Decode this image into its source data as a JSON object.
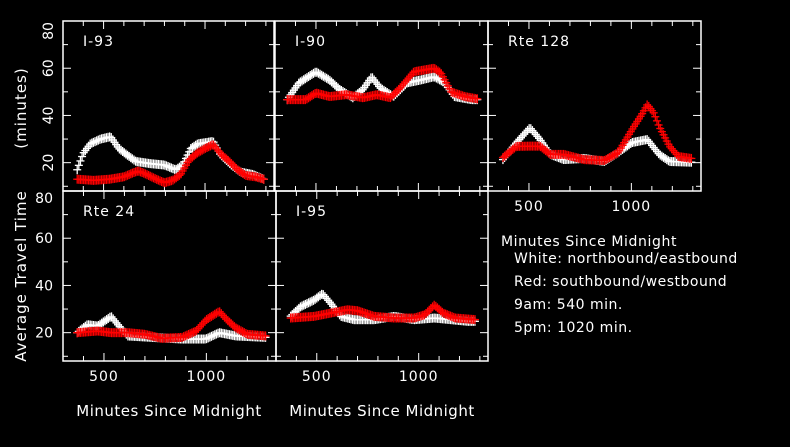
{
  "chart_data": {
    "type": "scatter",
    "xlabel": "Minutes Since Midnight",
    "ylabel_line1": "Average Travel Time",
    "ylabel_line2": "(minutes)",
    "xlim": [
      300,
      1340
    ],
    "ylim": [
      8,
      80
    ],
    "x_ticks": [
      "500",
      "1000"
    ],
    "y_ticks": [
      "20",
      "40",
      "60",
      "80"
    ],
    "x_tick_values": [
      500,
      1000
    ],
    "y_tick_values": [
      20,
      40,
      60,
      80
    ],
    "colors": {
      "northbound": "#ffffff",
      "southbound": "#ff0000",
      "axes": "#ffffff",
      "background": "#000000"
    },
    "legend": {
      "title": "Minutes Since Midnight",
      "lines": [
        "White: northbound/eastbound",
        "Red: southbound/westbound",
        "9am: 540 min.",
        "5pm: 1020 min."
      ]
    },
    "panels": [
      {
        "title": "I-93",
        "series": [
          {
            "name": "northbound/eastbound",
            "color": "#ffffff",
            "x": [
              370,
              400,
              435,
              485,
              535,
              575,
              620,
              660,
              730,
              800,
              855,
              890,
              930,
              965,
              1005,
              1040,
              1075,
              1130,
              1175,
              1235,
              1290
            ],
            "y": [
              17,
              24,
              28,
              30,
              31,
              26,
              23,
              20.5,
              19.6,
              19,
              17,
              19,
              26,
              28,
              28.5,
              29,
              23.5,
              19,
              16,
              15,
              13
            ]
          },
          {
            "name": "southbound/westbound",
            "color": "#ff0000",
            "x": [
              370,
              450,
              530,
              600,
              640,
              670,
              700,
              760,
              800,
              840,
              880,
              920,
              960,
              1000,
              1040,
              1080,
              1120,
              1160,
              1200,
              1250,
              1290
            ],
            "y": [
              13,
              12.5,
              13,
              14,
              15.5,
              16.5,
              15.5,
              13,
              11.5,
              12.5,
              15,
              21,
              24,
              26,
              27.7,
              23.5,
              20.5,
              17,
              14.6,
              14,
              13
            ]
          }
        ]
      },
      {
        "title": "I-90",
        "series": [
          {
            "name": "northbound/eastbound",
            "color": "#ffffff",
            "x": [
              360,
              417,
              500,
              566,
              616,
              680,
              730,
              772,
              813,
              878,
              945,
              1011,
              1077,
              1126,
              1176,
              1259,
              1290
            ],
            "y": [
              46.7,
              53.8,
              58.5,
              55,
              51,
              47.5,
              51,
              56.4,
              51.7,
              48,
              53.8,
              55,
              56.4,
              54,
              48,
              46.7,
              46.7
            ]
          },
          {
            "name": "southbound/westbound",
            "color": "#ff0000",
            "x": [
              360,
              450,
              500,
              566,
              648,
              730,
              797,
              863,
              912,
              978,
              1077,
              1110,
              1160,
              1226,
              1290
            ],
            "y": [
              46.7,
              46.7,
              49.5,
              48,
              48.8,
              47.5,
              48.8,
              47.5,
              51.7,
              58.5,
              60,
              58,
              50,
              48,
              47
            ]
          }
        ]
      },
      {
        "title": "Rte 128",
        "series": [
          {
            "name": "northbound/eastbound",
            "color": "#ffffff",
            "x": [
              373,
              439,
              505,
              554,
              604,
              670,
              769,
              868,
              936,
              1003,
              1078,
              1136,
              1186,
              1293
            ],
            "y": [
              21.3,
              28.5,
              34.8,
              29.8,
              23.5,
              21.3,
              21.8,
              20.5,
              24.3,
              28.5,
              29.8,
              23.5,
              20.5,
              20.2
            ]
          },
          {
            "name": "southbound/westbound",
            "color": "#ff0000",
            "x": [
              373,
              439,
              505,
              554,
              604,
              670,
              769,
              868,
              936,
              1003,
              1050,
              1078,
              1110,
              1136,
              1186,
              1230,
              1293
            ],
            "y": [
              22.2,
              26.9,
              27,
              27,
              23.5,
              23.5,
              21.3,
              20.9,
              24.3,
              34,
              40.3,
              44.6,
              41,
              35.3,
              27,
              22.6,
              21.8
            ]
          }
        ]
      },
      {
        "title": "Rte 24",
        "series": [
          {
            "name": "northbound/eastbound",
            "color": "#ffffff",
            "x": [
              369,
              419,
              469,
              535,
              568,
              617,
              733,
              881,
              997,
              1063,
              1144,
              1292
            ],
            "y": [
              20,
              23.4,
              22.8,
              26.9,
              23.4,
              18.6,
              18,
              17.3,
              17.3,
              20,
              18.6,
              18
            ]
          },
          {
            "name": "southbound/westbound",
            "color": "#ff0000",
            "x": [
              369,
              469,
              535,
              617,
              700,
              781,
              881,
              950,
              1000,
              1063,
              1100,
              1144,
              1200,
              1292
            ],
            "y": [
              20,
              20.7,
              20,
              20,
              19.3,
              17.6,
              18,
              20.7,
              25.5,
              29,
              25.5,
              22,
              19.3,
              18.6
            ]
          }
        ]
      },
      {
        "title": "I-95",
        "series": [
          {
            "name": "northbound/eastbound",
            "color": "#ffffff",
            "x": [
              372,
              421,
              487,
              528,
              569,
              618,
              683,
              782,
              880,
              978,
              1077,
              1241,
              1282
            ],
            "y": [
              27,
              31,
              33.8,
              36.5,
              32.4,
              26.9,
              25.5,
              25.5,
              26.9,
              25.5,
              26.2,
              24.8,
              24.8
            ]
          },
          {
            "name": "southbound/westbound",
            "color": "#ff0000",
            "x": [
              372,
              487,
              569,
              650,
              700,
              782,
              880,
              978,
              1030,
              1077,
              1120,
              1180,
              1282
            ],
            "y": [
              26.2,
              26.9,
              28.3,
              29.7,
              29.3,
              26.9,
              26.2,
              26.2,
              27.6,
              31.7,
              28.3,
              26.2,
              25.5
            ]
          }
        ]
      }
    ]
  }
}
